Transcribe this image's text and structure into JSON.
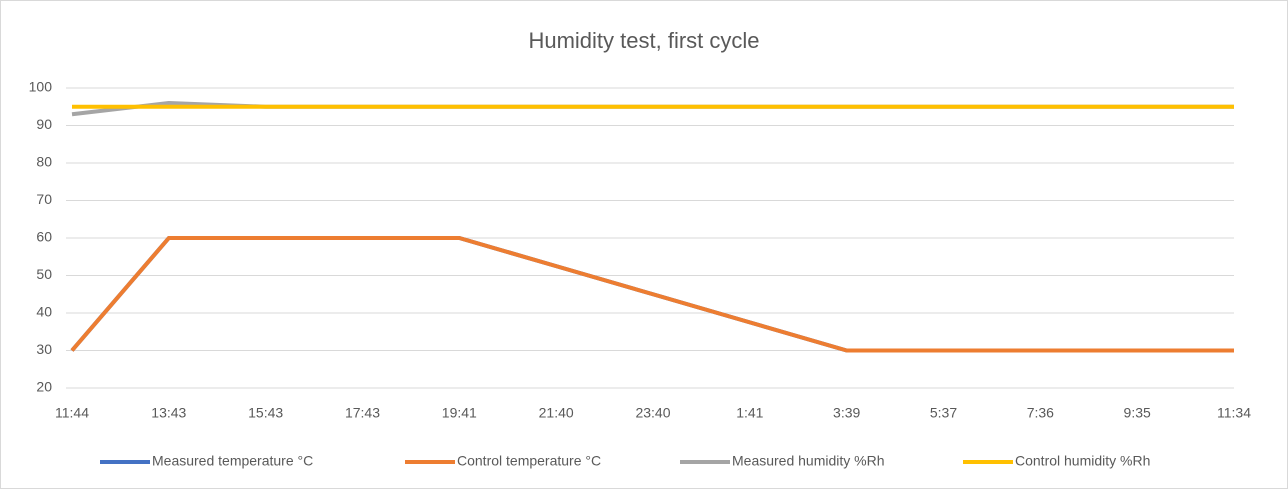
{
  "chart_data": {
    "type": "line",
    "title": "Humidity test, first cycle",
    "categories": [
      "11:44",
      "13:43",
      "15:43",
      "17:43",
      "19:41",
      "21:40",
      "23:40",
      "1:41",
      "3:39",
      "5:37",
      "7:36",
      "9:35",
      "11:34"
    ],
    "series": [
      {
        "name": "Measured temperature  °C",
        "color": "#4472c4",
        "values": [
          30,
          60,
          60,
          60,
          60,
          52.5,
          45,
          37.5,
          30,
          30,
          30,
          30,
          30
        ]
      },
      {
        "name": "Control temperature °C",
        "color": "#ed7d31",
        "values": [
          30,
          60,
          60,
          60,
          60,
          52.5,
          45,
          37.5,
          30,
          30,
          30,
          30,
          30
        ]
      },
      {
        "name": "Measured humidity %Rh",
        "color": "#a5a5a5",
        "values": [
          93,
          96,
          95,
          95,
          95,
          95,
          95,
          95,
          95,
          95,
          95,
          95,
          95
        ]
      },
      {
        "name": "Control humidity %Rh",
        "color": "#ffc000",
        "values": [
          95,
          95,
          95,
          95,
          95,
          95,
          95,
          95,
          95,
          95,
          95,
          95,
          95
        ]
      }
    ],
    "ylim": [
      20,
      100
    ],
    "yticks": [
      20,
      30,
      40,
      50,
      60,
      70,
      80,
      90,
      100
    ],
    "grid": true,
    "legend": "bottom"
  }
}
